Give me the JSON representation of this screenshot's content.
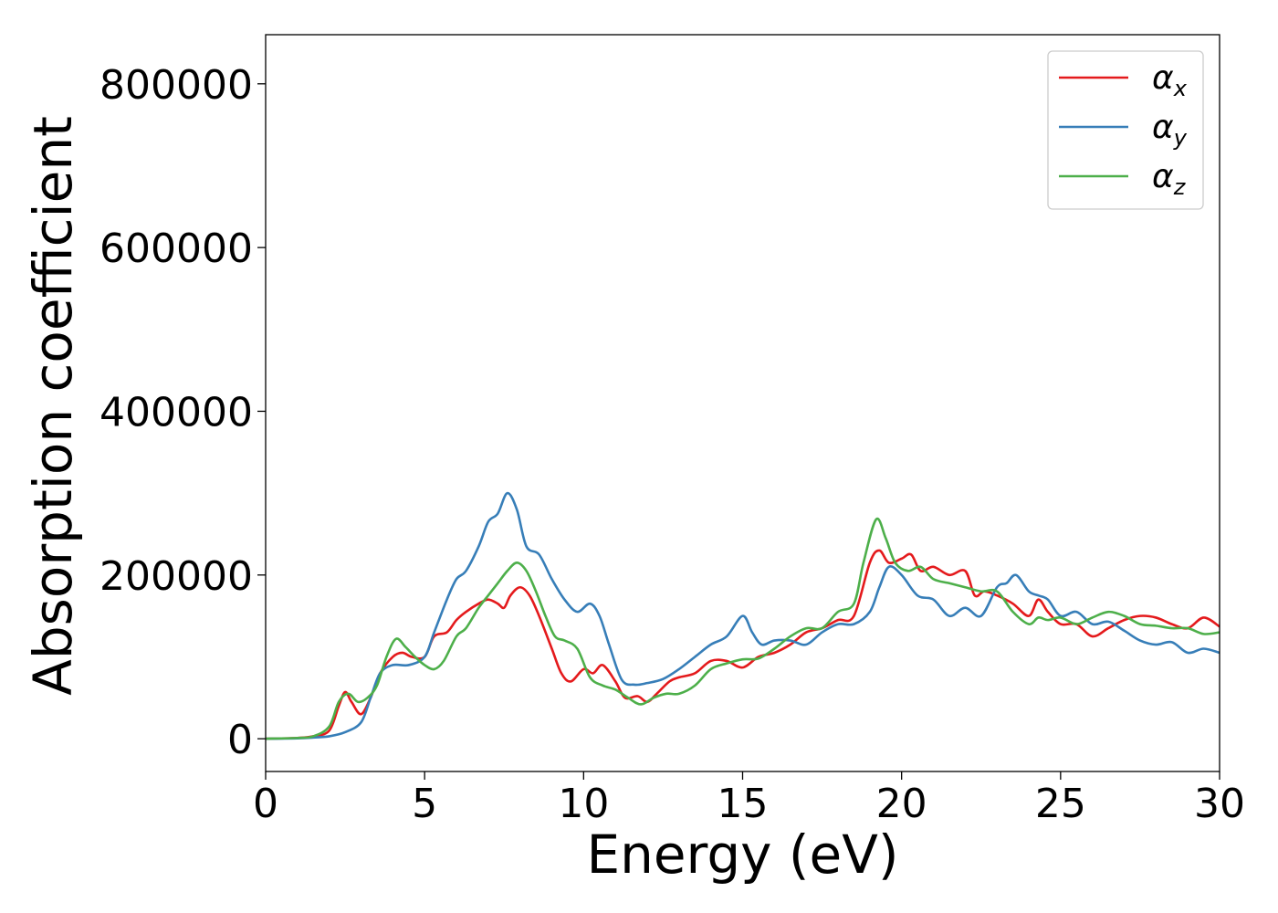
{
  "chart_data": {
    "type": "line",
    "title": "",
    "xlabel": "Energy (eV)",
    "ylabel": "Absorption coefficient",
    "xlim": [
      0,
      30
    ],
    "ylim": [
      -40000,
      860000
    ],
    "xticks": [
      0,
      5,
      10,
      15,
      20,
      25,
      30
    ],
    "xtick_labels": [
      "0",
      "5",
      "10",
      "15",
      "20",
      "25",
      "30"
    ],
    "yticks": [
      0,
      200000,
      400000,
      600000,
      800000
    ],
    "ytick_labels": [
      "0",
      "200000",
      "400000",
      "600000",
      "800000"
    ],
    "grid": false,
    "legend_position": "top-right",
    "series": [
      {
        "name": "αx",
        "symbol": "α",
        "subscript": "x",
        "color": "#e41a1c",
        "x": [
          0,
          1,
          1.5,
          2,
          2.3,
          2.5,
          2.7,
          3,
          3.3,
          3.6,
          4,
          4.3,
          4.6,
          5,
          5.3,
          5.7,
          6,
          6.3,
          6.7,
          7,
          7.3,
          7.5,
          7.7,
          8,
          8.3,
          8.6,
          9,
          9.3,
          9.6,
          10,
          10.3,
          10.6,
          11,
          11.3,
          11.7,
          12,
          12.3,
          12.7,
          13,
          13.5,
          14,
          14.5,
          15,
          15.5,
          16,
          16.5,
          17,
          17.5,
          18,
          18.5,
          19,
          19.3,
          19.6,
          20,
          20.3,
          20.6,
          21,
          21.5,
          22,
          22.3,
          22.6,
          23,
          23.5,
          24,
          24.3,
          24.6,
          25,
          25.5,
          26,
          26.5,
          27,
          27.5,
          28,
          28.5,
          29,
          29.5,
          30
        ],
        "y": [
          0,
          1000,
          3000,
          10000,
          40000,
          57000,
          45000,
          30000,
          50000,
          80000,
          100000,
          105000,
          100000,
          100000,
          125000,
          130000,
          145000,
          155000,
          165000,
          170000,
          165000,
          160000,
          175000,
          185000,
          175000,
          150000,
          110000,
          80000,
          70000,
          85000,
          80000,
          90000,
          70000,
          50000,
          52000,
          45000,
          55000,
          70000,
          75000,
          80000,
          95000,
          95000,
          87000,
          100000,
          105000,
          115000,
          130000,
          135000,
          145000,
          150000,
          215000,
          230000,
          215000,
          220000,
          225000,
          205000,
          210000,
          200000,
          205000,
          175000,
          180000,
          175000,
          165000,
          150000,
          170000,
          155000,
          140000,
          140000,
          125000,
          135000,
          145000,
          150000,
          148000,
          140000,
          135000,
          148000,
          137000
        ]
      },
      {
        "name": "αy",
        "symbol": "α",
        "subscript": "y",
        "color": "#377eb8",
        "x": [
          0,
          1,
          1.5,
          2,
          2.5,
          3,
          3.3,
          3.6,
          4,
          4.5,
          5,
          5.3,
          5.7,
          6,
          6.3,
          6.7,
          7,
          7.3,
          7.6,
          7.9,
          8.2,
          8.6,
          9,
          9.4,
          9.8,
          10.2,
          10.5,
          10.8,
          11.2,
          11.6,
          12,
          12.5,
          13,
          13.5,
          14,
          14.5,
          15,
          15.3,
          15.6,
          16,
          16.5,
          17,
          17.5,
          18,
          18.5,
          19,
          19.3,
          19.6,
          20,
          20.5,
          21,
          21.5,
          22,
          22.5,
          23,
          23.3,
          23.6,
          24,
          24.3,
          24.6,
          25,
          25.5,
          26,
          26.5,
          27,
          27.5,
          28,
          28.5,
          29,
          29.5,
          30
        ],
        "y": [
          0,
          500,
          1500,
          3000,
          8000,
          20000,
          50000,
          80000,
          90000,
          90000,
          100000,
          130000,
          170000,
          195000,
          205000,
          235000,
          265000,
          275000,
          300000,
          280000,
          235000,
          225000,
          195000,
          170000,
          155000,
          165000,
          150000,
          115000,
          72000,
          66000,
          68000,
          73000,
          85000,
          100000,
          115000,
          125000,
          150000,
          130000,
          115000,
          120000,
          120000,
          115000,
          130000,
          140000,
          140000,
          155000,
          185000,
          210000,
          200000,
          175000,
          170000,
          150000,
          160000,
          150000,
          185000,
          190000,
          200000,
          180000,
          175000,
          170000,
          150000,
          155000,
          140000,
          143000,
          132000,
          120000,
          115000,
          118000,
          105000,
          110000,
          105000
        ]
      },
      {
        "name": "αz",
        "symbol": "α",
        "subscript": "z",
        "color": "#4daf4a",
        "x": [
          0,
          1,
          1.5,
          2,
          2.3,
          2.6,
          2.9,
          3.2,
          3.5,
          3.8,
          4.1,
          4.4,
          4.7,
          5,
          5.3,
          5.6,
          6,
          6.3,
          6.7,
          7,
          7.3,
          7.6,
          7.9,
          8.2,
          8.5,
          8.8,
          9.1,
          9.4,
          9.8,
          10.2,
          10.6,
          11,
          11.4,
          11.8,
          12.2,
          12.6,
          13,
          13.5,
          14,
          14.5,
          15,
          15.5,
          16,
          16.5,
          17,
          17.5,
          18,
          18.5,
          18.8,
          19.2,
          19.5,
          19.8,
          20.2,
          20.6,
          21,
          21.5,
          22,
          22.5,
          23,
          23.5,
          24,
          24.3,
          24.6,
          25,
          25.5,
          26,
          26.5,
          27,
          27.5,
          28,
          28.5,
          29,
          29.5,
          30
        ],
        "y": [
          0,
          1000,
          3000,
          15000,
          45000,
          55000,
          45000,
          50000,
          65000,
          100000,
          122000,
          112000,
          100000,
          90000,
          85000,
          95000,
          125000,
          135000,
          160000,
          175000,
          190000,
          205000,
          215000,
          205000,
          180000,
          150000,
          125000,
          120000,
          110000,
          75000,
          65000,
          60000,
          50000,
          42000,
          50000,
          55000,
          55000,
          65000,
          85000,
          92000,
          97000,
          98000,
          110000,
          125000,
          135000,
          135000,
          155000,
          165000,
          215000,
          268000,
          245000,
          215000,
          205000,
          210000,
          195000,
          190000,
          185000,
          180000,
          180000,
          155000,
          140000,
          148000,
          145000,
          148000,
          140000,
          148000,
          155000,
          150000,
          140000,
          138000,
          135000,
          135000,
          128000,
          130000
        ]
      }
    ]
  }
}
